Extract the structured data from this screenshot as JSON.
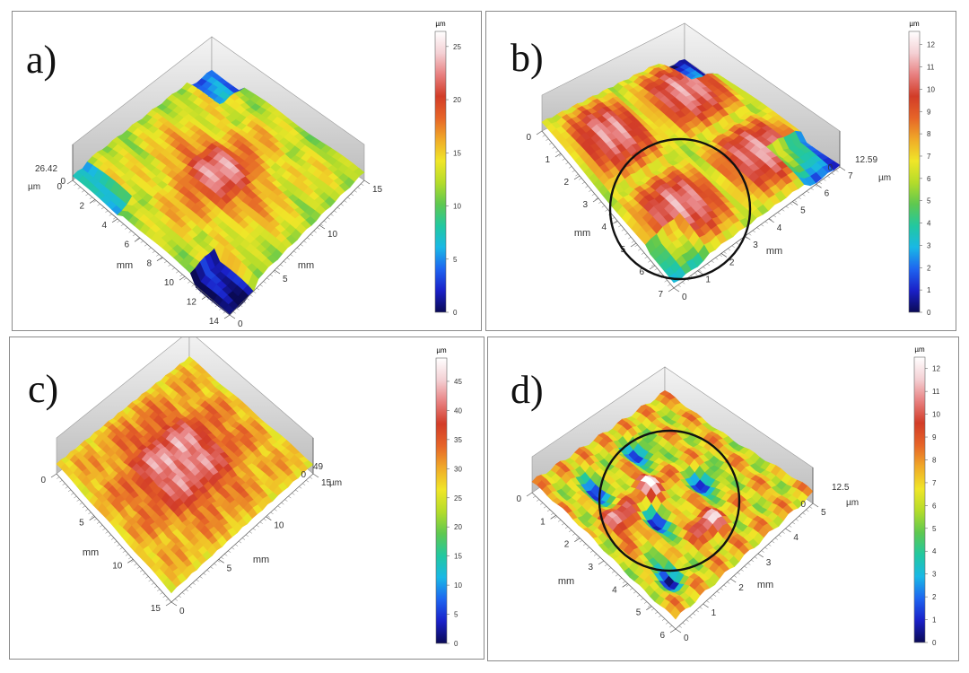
{
  "colorbar_colors": [
    "#0a0a55",
    "#1a20c8",
    "#1e64f0",
    "#19b8e6",
    "#22c8a0",
    "#5ec850",
    "#b4dc2a",
    "#f0e628",
    "#f0aa28",
    "#e66428",
    "#d23c28",
    "#e88080",
    "#f4d0d4",
    "#ffffff"
  ],
  "chart_data": [
    {
      "type": "heatmap",
      "label": "a)",
      "z_unit": "µm",
      "z_max_label": "26.42",
      "colorbar_ticks": [
        0,
        5,
        10,
        15,
        20,
        25
      ],
      "colorbar_range": [
        0,
        26.42
      ],
      "x_axis": {
        "label": "mm",
        "ticks": [
          0,
          2,
          4,
          6,
          8,
          10,
          12,
          14
        ]
      },
      "y_axis": {
        "label": "mm",
        "ticks": [
          0,
          5,
          10,
          15
        ]
      },
      "surface_features": "raised 3x3 grid of red/white plateaus with blue depressions at the edges"
    },
    {
      "type": "heatmap",
      "label": "b)",
      "z_unit": "µm",
      "z_max_label": "12.59",
      "colorbar_ticks": [
        0,
        1,
        2,
        3,
        4,
        5,
        6,
        7,
        8,
        9,
        10,
        11,
        12
      ],
      "colorbar_range": [
        0,
        12.59
      ],
      "x_axis": {
        "label": "mm",
        "ticks": [
          0,
          1,
          2,
          3,
          4,
          5,
          6,
          7
        ]
      },
      "y_axis": {
        "label": "mm",
        "ticks": [
          0,
          1,
          2,
          3,
          4,
          5,
          6,
          7
        ]
      },
      "surface_features": "four red square plateaus separated by green troughs, circled region"
    },
    {
      "type": "heatmap",
      "label": "c)",
      "z_unit": "µm",
      "z_max_label": "49",
      "colorbar_ticks": [
        0,
        5,
        10,
        15,
        20,
        25,
        30,
        35,
        40,
        45
      ],
      "colorbar_range": [
        0,
        49
      ],
      "x_axis": {
        "label": "mm",
        "ticks": [
          0,
          5,
          10,
          15
        ]
      },
      "y_axis": {
        "label": "mm",
        "ticks": [
          0,
          5,
          10,
          15
        ]
      },
      "surface_features": "dense grid of white/red peaks over an orange-yellow base"
    },
    {
      "type": "heatmap",
      "label": "d)",
      "z_unit": "µm",
      "z_max_label": "12.5",
      "colorbar_ticks": [
        0,
        1,
        2,
        3,
        4,
        5,
        6,
        7,
        8,
        9,
        10,
        11,
        12
      ],
      "colorbar_range": [
        0,
        12.5
      ],
      "x_axis": {
        "label": "mm",
        "ticks": [
          0,
          1,
          2,
          3,
          4,
          5,
          6
        ]
      },
      "y_axis": {
        "label": "mm",
        "ticks": [
          0,
          1,
          2,
          3,
          4,
          5
        ]
      },
      "surface_features": "yellow-green wavy surface with blue pits, circled region"
    }
  ]
}
